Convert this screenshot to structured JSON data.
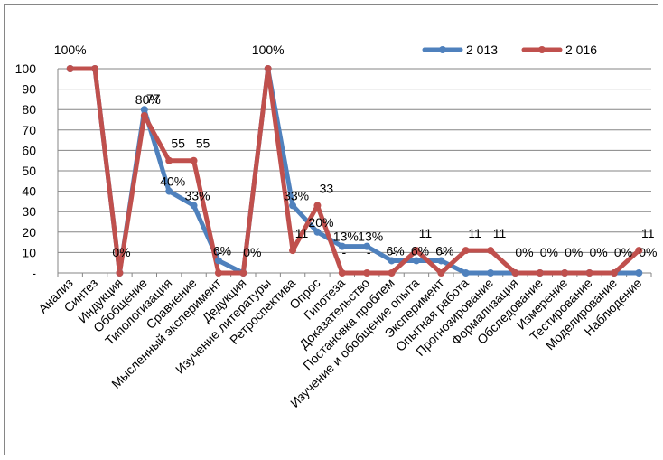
{
  "chart_data": {
    "type": "line",
    "title": "",
    "xlabel": "",
    "ylabel": "",
    "ylim": [
      0,
      100
    ],
    "yticks": [
      0,
      10,
      20,
      30,
      40,
      50,
      60,
      70,
      80,
      90,
      100
    ],
    "ytick_labels": [
      "-",
      "10",
      "20",
      "30",
      "40",
      "50",
      "60",
      "70",
      "80",
      "90",
      "100"
    ],
    "grid": true,
    "legend_position": "top-right",
    "categories": [
      "Анализ",
      "Синтез",
      "Индукция",
      "Обобщение",
      "Типологизация",
      "Сравнение",
      "Мысленный эксперимент",
      "Дедукция",
      "Изучение литературы",
      "Ретроспектива",
      "Опрос",
      "Гипотеза",
      "Доказательство",
      "Постановка проблем",
      "Изучение и обобщение опыта",
      "Эксперимент",
      "Опытная работа",
      "Прогнозирование",
      "Формализация",
      "Обследование",
      "Измерение",
      "Тестирование",
      "Моделирование",
      "Наблюдение"
    ],
    "series": [
      {
        "name": "2 013",
        "color": "#4F81BD",
        "values": [
          100,
          100,
          0,
          80,
          40,
          33,
          6,
          0,
          100,
          33,
          20,
          13,
          13,
          6,
          6,
          6,
          0,
          0,
          0,
          0,
          0,
          0,
          0,
          0
        ],
        "labels": [
          "",
          "",
          "",
          "80%",
          "40%",
          "33%",
          "6%",
          "0%",
          "",
          "33%",
          "20%",
          "13%",
          "13%",
          "6%",
          "6%",
          "6%",
          "",
          "",
          "0%",
          "0%",
          "0%",
          "0%",
          "0%",
          "0%"
        ]
      },
      {
        "name": "2 016",
        "color": "#C0504D",
        "values": [
          100,
          100,
          0,
          77,
          55,
          55,
          0,
          0,
          100,
          11,
          33,
          0,
          0,
          0,
          11,
          0,
          11,
          11,
          0,
          0,
          0,
          0,
          0,
          11
        ],
        "labels": [
          "100%",
          "",
          "0%",
          "77",
          "55",
          "55",
          "-",
          "",
          "100%",
          "11",
          "33",
          "-",
          "-",
          "-",
          "11",
          "-",
          "11",
          "11",
          "",
          "",
          "",
          "",
          "",
          "11"
        ]
      }
    ]
  }
}
